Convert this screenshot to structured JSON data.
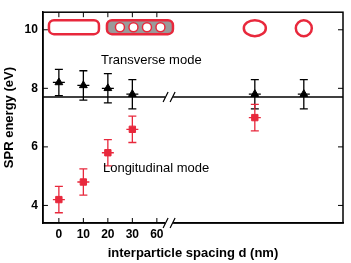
{
  "chart_data": {
    "type": "scatter",
    "x_label": "interparticle spacing d (nm)",
    "y_label": "SPR energy (eV)",
    "categories": [
      "0",
      "10",
      "20",
      "30",
      "60",
      null,
      null,
      null,
      null,
      null,
      null,
      null
    ],
    "series": [
      {
        "name": "Transverse mode",
        "color": "#000000",
        "marker": "triangle",
        "values": [
          8.2,
          8.1,
          8.0,
          7.8,
          null,
          null,
          null,
          null,
          7.8,
          null,
          7.8,
          null
        ],
        "errors": [
          0.45,
          0.5,
          0.5,
          0.5,
          null,
          null,
          null,
          null,
          0.5,
          null,
          0.5,
          null
        ]
      },
      {
        "name": "Longitudinal mode",
        "color": "#e8283c",
        "marker": "square",
        "values": [
          4.2,
          4.8,
          5.8,
          6.6,
          null,
          null,
          null,
          null,
          7.0,
          null,
          null,
          null
        ],
        "errors": [
          0.45,
          0.45,
          0.45,
          0.45,
          null,
          null,
          null,
          null,
          0.45,
          null,
          null,
          null
        ]
      }
    ],
    "hline": 7.7,
    "ylim": [
      3.4,
      10.6
    ],
    "yticks": [
      4,
      6,
      8,
      10
    ],
    "grid": false
  }
}
